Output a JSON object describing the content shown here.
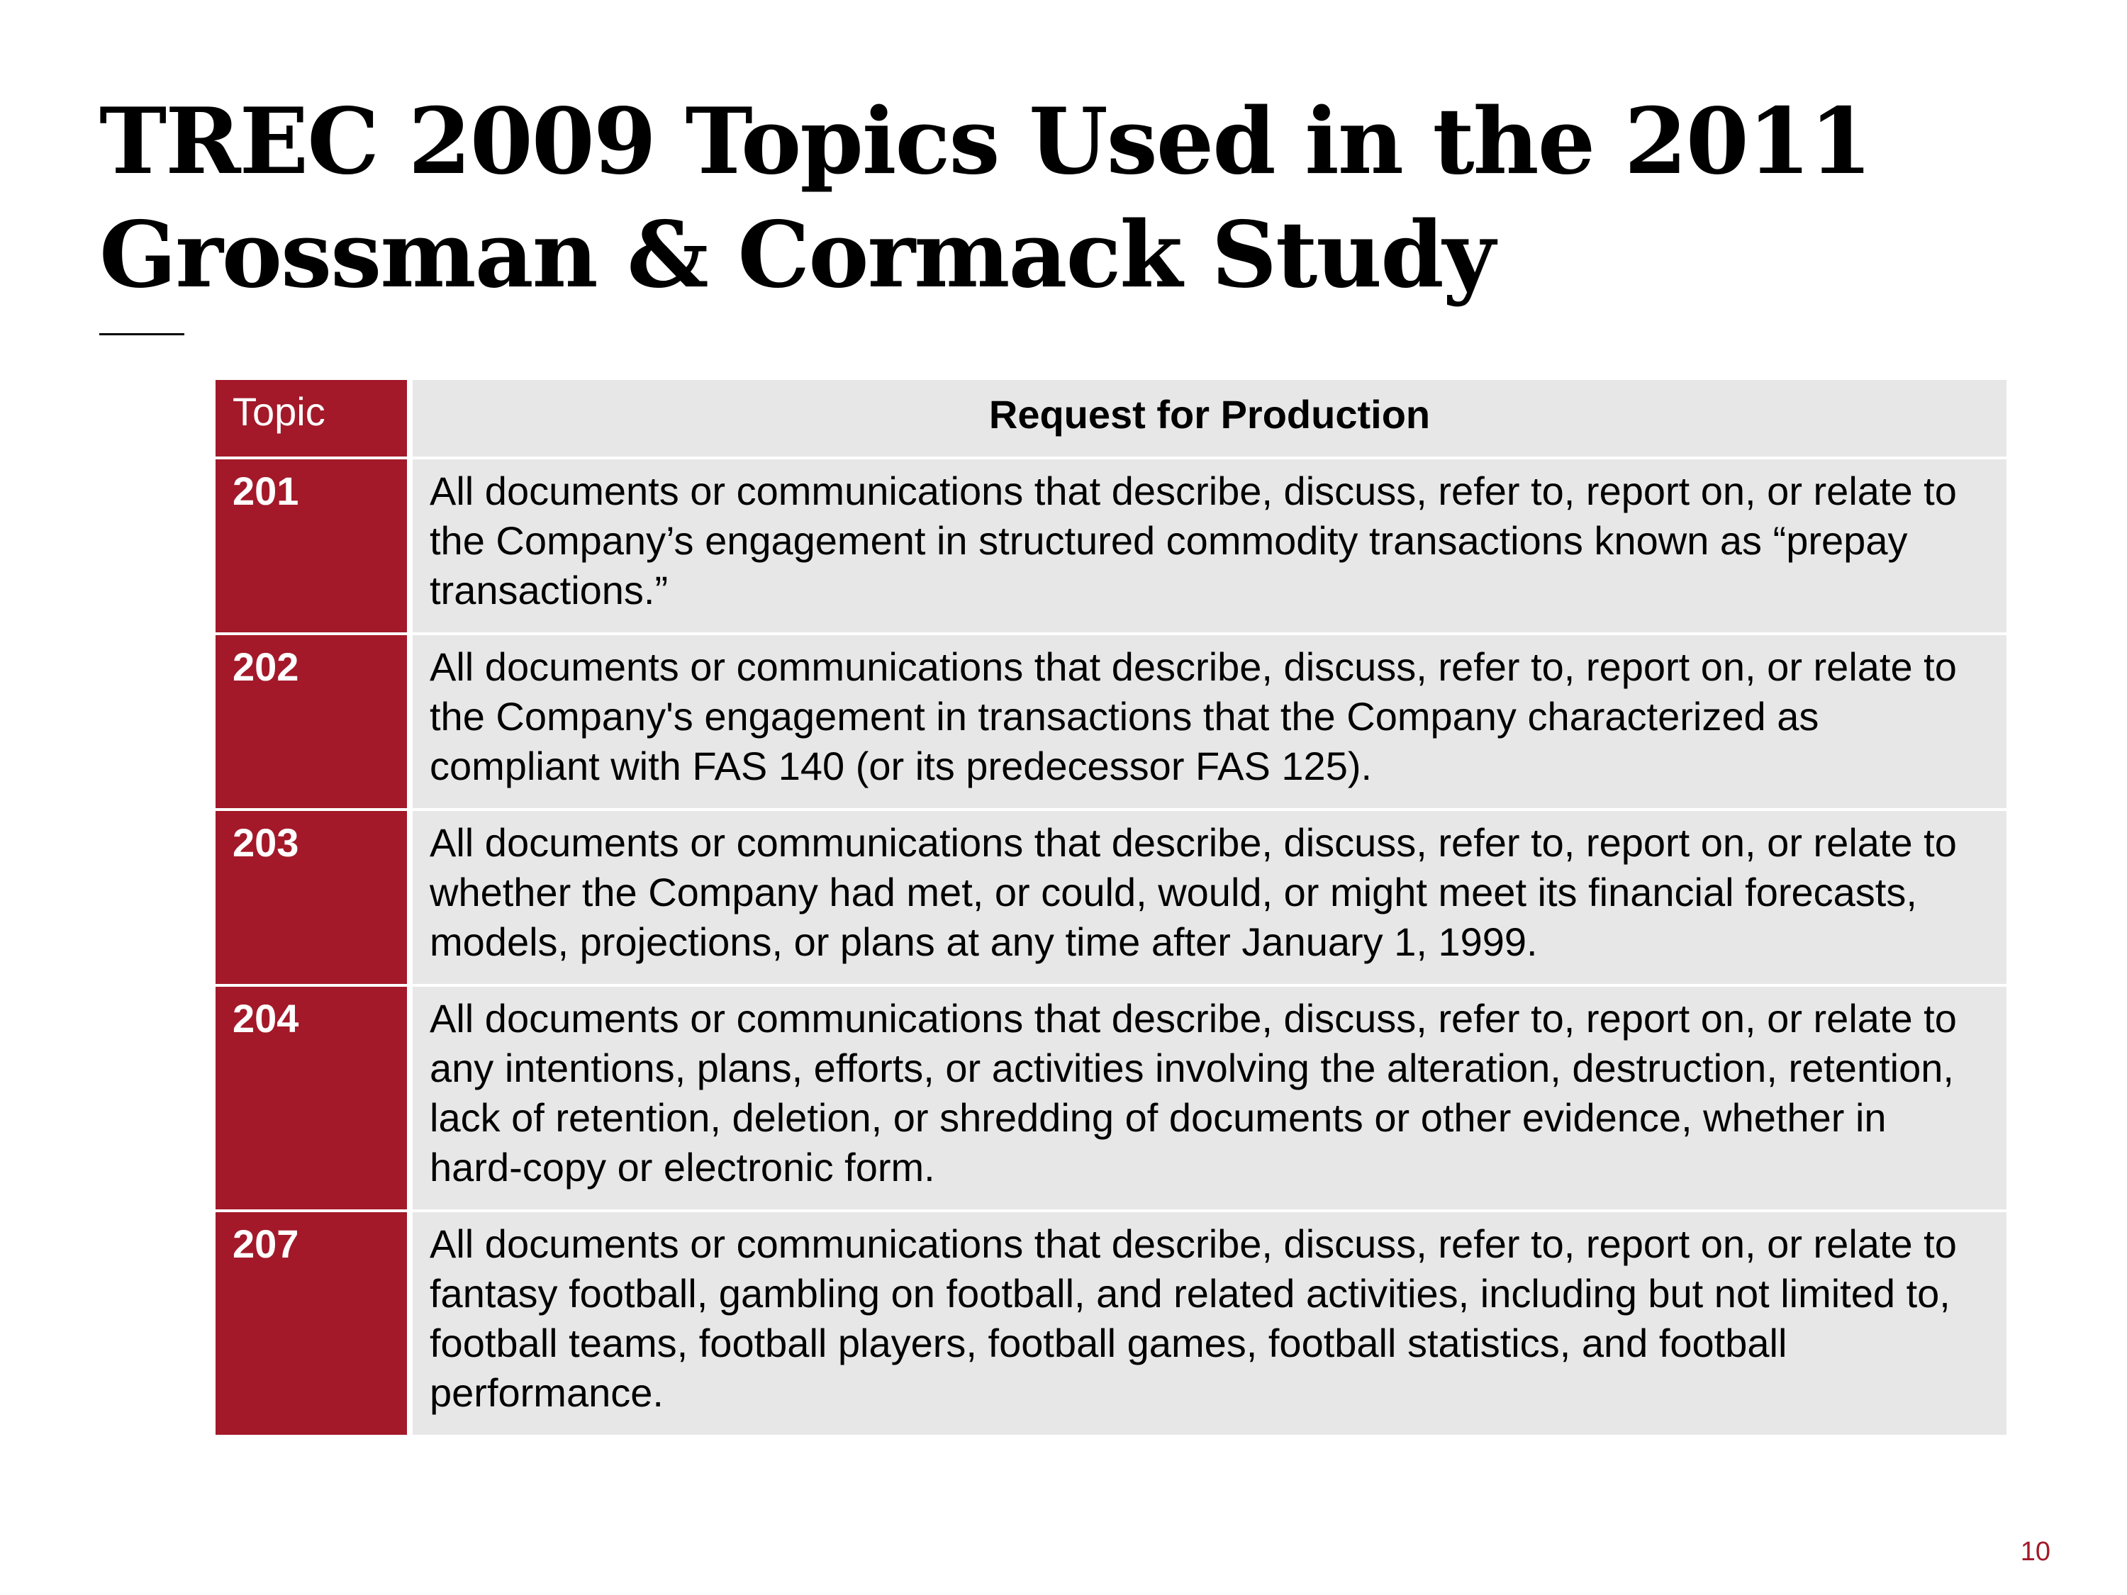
{
  "slide": {
    "title_line1": "TREC 2009 Topics Used in the 2011",
    "title_line2": "Grossman & Cormack Study",
    "page_number": "10"
  },
  "table": {
    "headers": {
      "topic": "Topic",
      "request": "Request for Production"
    },
    "rows": [
      {
        "topic": "201",
        "request": "All documents or communications that describe, discuss, refer to, report on, or relate to the Company’s engagement in structured commodity transactions known as “prepay transactions.”"
      },
      {
        "topic": "202",
        "request": "All documents or communications that describe, discuss, refer to, report on, or relate to the Company's engagement in transactions that the Company characterized as compliant with FAS 140 (or its predecessor FAS 125)."
      },
      {
        "topic": "203",
        "request": "All documents or communications that describe, discuss, refer to, report on, or relate to whether the Company had met, or could, would, or might meet its financial forecasts, models, projections, or plans at any time after January 1, 1999."
      },
      {
        "topic": "204",
        "request": "All documents or communications that describe, discuss, refer to, report on, or relate to any intentions, plans, efforts, or activities involving the alteration, destruction, retention, lack of retention, deletion, or shredding of documents or other evidence, whether in hard-copy or electronic form."
      },
      {
        "topic": "207",
        "request": "All documents or communications that describe, discuss, refer to, report on, or relate to fantasy football, gambling on football, and related activities, including but not limited to, football teams, football players, football games, football statistics, and football performance."
      }
    ]
  },
  "colors": {
    "accent": "#a31929",
    "cell_background": "#e7e7e7"
  }
}
